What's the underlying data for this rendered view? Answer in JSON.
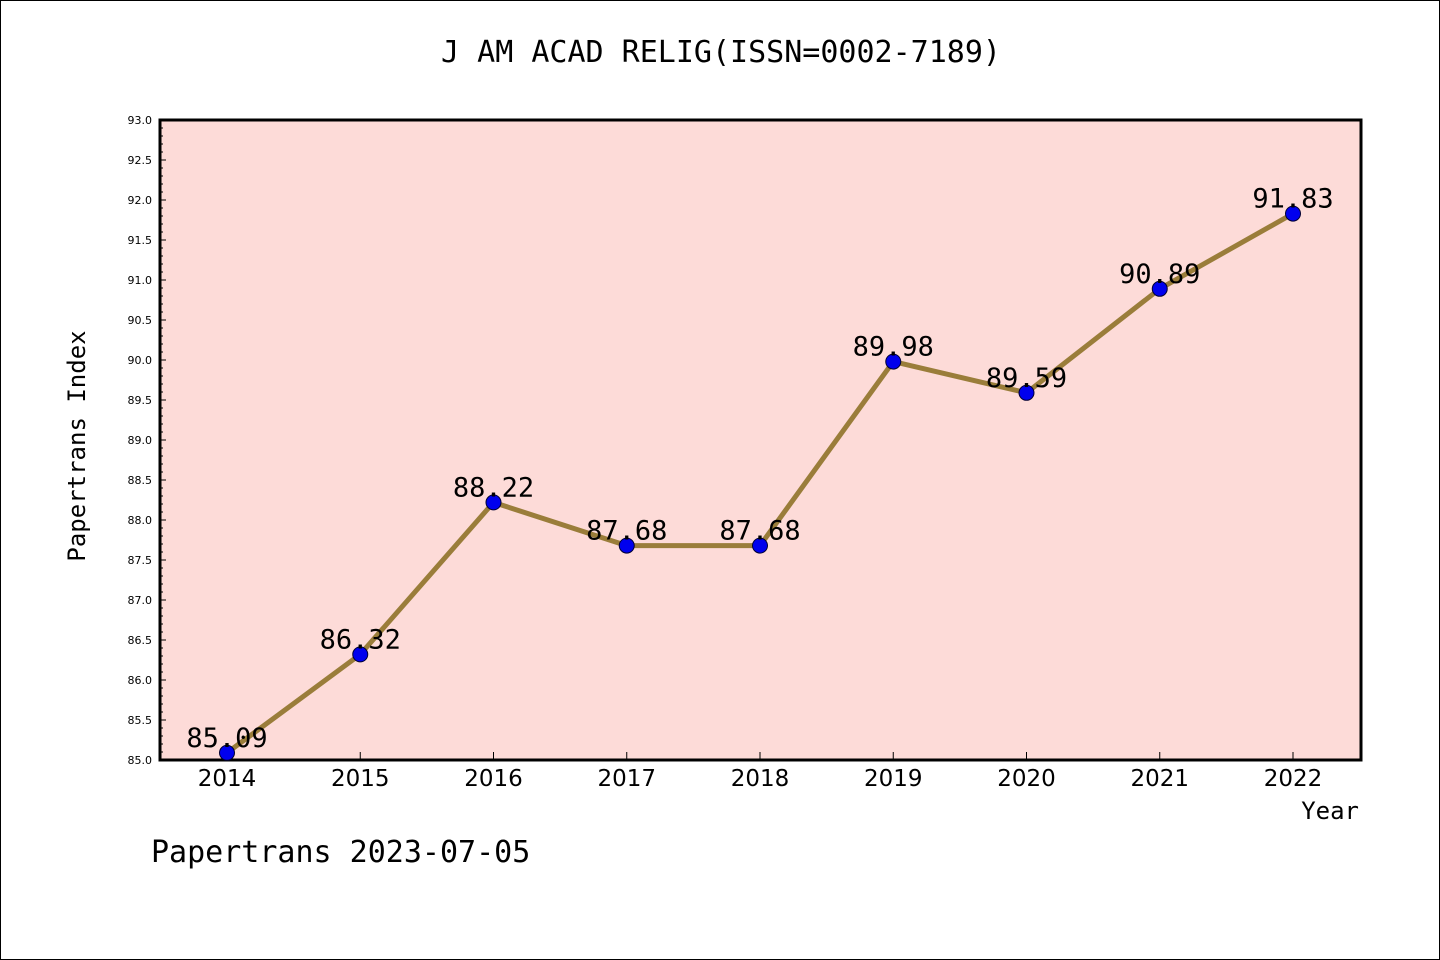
{
  "chart_data": {
    "type": "line",
    "title": "J AM ACAD RELIG(ISSN=0002-7189)",
    "xlabel": "Year",
    "ylabel": "Papertrans Index",
    "categories": [
      "2014",
      "2015",
      "2016",
      "2017",
      "2018",
      "2019",
      "2020",
      "2021",
      "2022"
    ],
    "series": [
      {
        "values": [
          85.09,
          86.32,
          88.22,
          87.68,
          87.68,
          89.98,
          89.59,
          90.89,
          91.83
        ],
        "data_labels": [
          "85.09",
          "86.32",
          "88.22",
          "87.68",
          "87.68",
          "89.98",
          "89.59",
          "90.89",
          "91.83"
        ]
      }
    ],
    "y_ticks": [
      "85.0",
      "85.5",
      "86.0",
      "86.5",
      "87.0",
      "87.5",
      "88.0",
      "88.5",
      "89.0",
      "89.5",
      "90.0",
      "90.5",
      "91.0",
      "91.5",
      "92.0",
      "92.5",
      "93.0"
    ],
    "ylim": [
      85.0,
      93.0
    ],
    "grid": false,
    "colors": {
      "plot_background": "#fddbd8",
      "line": "#9a7d3a",
      "marker": "#0000ee"
    }
  },
  "footer": {
    "text": "Papertrans 2023-07-05"
  }
}
